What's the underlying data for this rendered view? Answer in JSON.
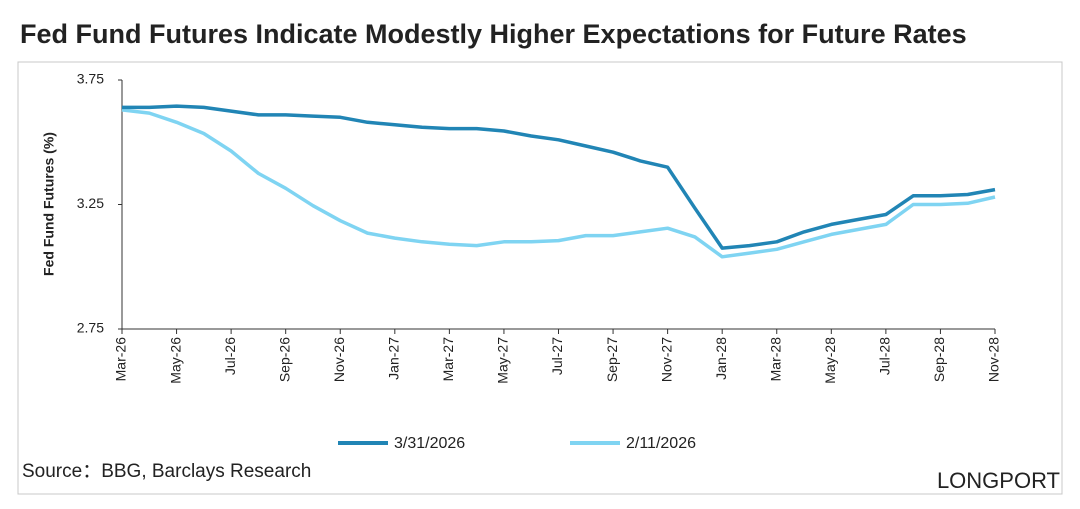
{
  "chart_data": {
    "type": "line",
    "title": "Fed Fund Futures Indicate Modestly Higher Expectations for Future Rates",
    "y_label": "Fed Fund Futures (%)",
    "source": "Source：BBG, Barclays Research",
    "watermark": "LONGPORT",
    "categories": [
      "Mar-26",
      null,
      "May-26",
      null,
      "Jul-26",
      null,
      "Sep-26",
      null,
      "Nov-26",
      null,
      "Jan-27",
      null,
      "Mar-27",
      null,
      "May-27",
      null,
      "Jul-27",
      null,
      "Sep-27",
      null,
      "Nov-27",
      null,
      "Jan-28",
      null,
      "Mar-28",
      null,
      "May-28",
      null,
      "Jul-28",
      null,
      "Sep-28",
      null,
      "Nov-28"
    ],
    "series": [
      {
        "name": "3/31/2026",
        "color": "#2185b5",
        "values": [
          3.64,
          3.64,
          3.645,
          3.64,
          3.625,
          3.61,
          3.61,
          3.605,
          3.6,
          3.58,
          3.57,
          3.56,
          3.555,
          3.555,
          3.545,
          3.525,
          3.51,
          3.485,
          3.46,
          3.425,
          3.4,
          3.235,
          3.075,
          3.085,
          3.1,
          3.14,
          3.17,
          3.19,
          3.21,
          3.285,
          3.285,
          3.29,
          3.31
        ]
      },
      {
        "name": "2/11/2026",
        "color": "#7fd4f2",
        "values": [
          3.63,
          3.617,
          3.58,
          3.535,
          3.465,
          3.375,
          3.315,
          3.245,
          3.185,
          3.135,
          3.115,
          3.1,
          3.09,
          3.085,
          3.1,
          3.1,
          3.105,
          3.125,
          3.125,
          3.14,
          3.155,
          3.12,
          3.04,
          3.055,
          3.07,
          3.1,
          3.13,
          3.15,
          3.17,
          3.25,
          3.25,
          3.255,
          3.28
        ]
      }
    ],
    "ylim": [
      2.75,
      3.75
    ],
    "yticks": [
      2.75,
      3.25,
      3.75
    ],
    "grid": false
  }
}
